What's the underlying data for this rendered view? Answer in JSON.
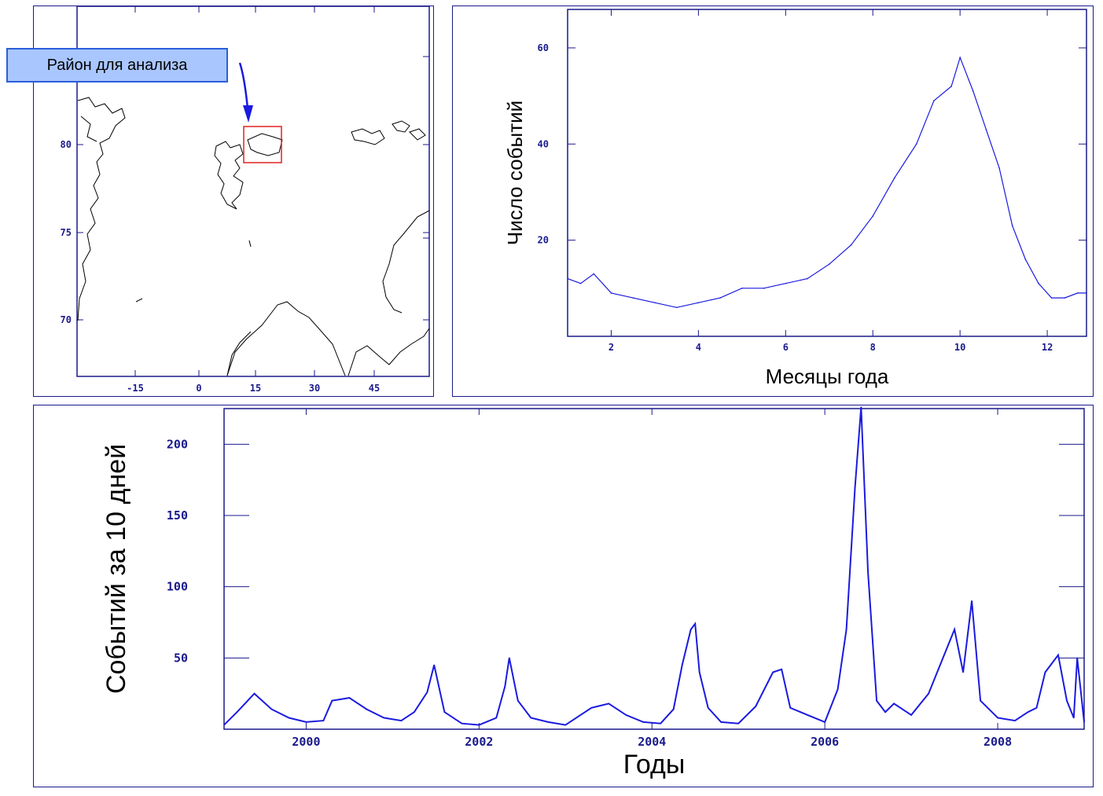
{
  "map": {
    "callout_label": "Район для анализа",
    "x_ticks": [
      "-15",
      "0",
      "15",
      "30",
      "45"
    ],
    "y_ticks": [
      "80",
      "75",
      "70"
    ],
    "box_color": "#e02020",
    "arrow_color": "#1a1ae0"
  },
  "chart_data": [
    {
      "type": "line",
      "xlabel": "Месяцы года",
      "ylabel": "Число событий",
      "xlim": [
        1,
        12.9
      ],
      "ylim": [
        0,
        68
      ],
      "x_ticks": [
        2,
        4,
        6,
        8,
        10,
        12
      ],
      "y_ticks": [
        20,
        40,
        60
      ],
      "series": [
        {
          "color": "#1a1ae0",
          "x": [
            1.0,
            1.3,
            1.6,
            2.0,
            2.5,
            3.0,
            3.5,
            4.0,
            4.5,
            5.0,
            5.5,
            6.0,
            6.5,
            7.0,
            7.5,
            8.0,
            8.5,
            9.0,
            9.4,
            9.8,
            10.0,
            10.3,
            10.6,
            10.9,
            11.2,
            11.5,
            11.8,
            12.1,
            12.4,
            12.7,
            12.9
          ],
          "values": [
            12,
            11,
            13,
            9,
            8,
            7,
            6,
            7,
            8,
            10,
            10,
            11,
            12,
            15,
            19,
            25,
            33,
            40,
            49,
            52,
            58,
            51,
            43,
            35,
            23,
            16,
            11,
            8,
            8,
            9,
            9
          ]
        }
      ]
    },
    {
      "type": "line",
      "xlabel": "Годы",
      "ylabel": "Событий за 10 дней",
      "xlim": [
        1999.05,
        2009.0
      ],
      "ylim": [
        0,
        225
      ],
      "x_ticks": [
        2000,
        2002,
        2004,
        2006,
        2008
      ],
      "y_ticks": [
        50,
        100,
        150,
        200
      ],
      "series": [
        {
          "color": "#1a1ae0",
          "x": [
            1999.05,
            1999.2,
            1999.4,
            1999.6,
            1999.8,
            2000.0,
            2000.2,
            2000.3,
            2000.5,
            2000.7,
            2000.9,
            2001.1,
            2001.25,
            2001.4,
            2001.48,
            2001.6,
            2001.8,
            2002.0,
            2002.2,
            2002.3,
            2002.35,
            2002.45,
            2002.6,
            2002.8,
            2003.0,
            2003.3,
            2003.5,
            2003.7,
            2003.9,
            2004.1,
            2004.25,
            2004.35,
            2004.45,
            2004.5,
            2004.55,
            2004.65,
            2004.8,
            2005.0,
            2005.2,
            2005.4,
            2005.5,
            2005.6,
            2005.8,
            2006.0,
            2006.15,
            2006.25,
            2006.35,
            2006.42,
            2006.5,
            2006.6,
            2006.7,
            2006.8,
            2007.0,
            2007.2,
            2007.4,
            2007.5,
            2007.6,
            2007.7,
            2007.8,
            2008.0,
            2008.2,
            2008.35,
            2008.45,
            2008.55,
            2008.7,
            2008.8,
            2008.88,
            2008.92,
            2009.0
          ],
          "values": [
            3,
            12,
            25,
            14,
            8,
            5,
            6,
            20,
            22,
            14,
            8,
            6,
            12,
            26,
            45,
            12,
            4,
            3,
            8,
            30,
            50,
            20,
            8,
            5,
            3,
            15,
            18,
            10,
            5,
            4,
            14,
            45,
            70,
            74,
            40,
            15,
            5,
            4,
            16,
            40,
            42,
            15,
            10,
            5,
            28,
            70,
            170,
            226,
            110,
            20,
            12,
            18,
            10,
            25,
            55,
            70,
            40,
            90,
            20,
            8,
            6,
            12,
            15,
            40,
            52,
            20,
            8,
            50,
            5
          ]
        }
      ]
    }
  ]
}
